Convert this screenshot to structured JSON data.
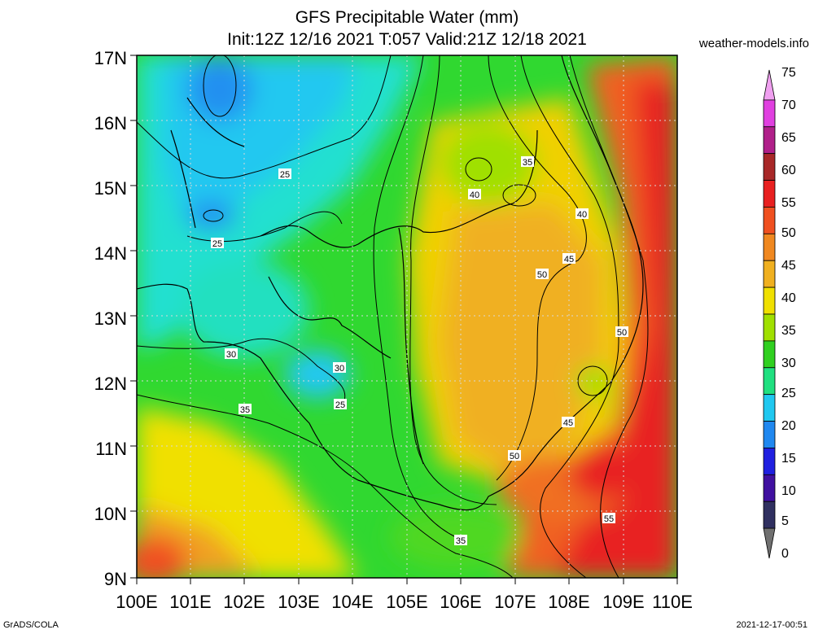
{
  "title": {
    "line1": "GFS Precipitable Water (mm)",
    "line2": "Init:12Z 12/16 2021 T:057 Valid:21Z 12/18 2021"
  },
  "site": "weather-models.info",
  "footer": {
    "left": "GrADS/COLA",
    "right": "2021-12-17-00:51"
  },
  "axes": {
    "lat_labels": [
      "17N",
      "16N",
      "15N",
      "14N",
      "13N",
      "12N",
      "11N",
      "10N",
      "9N"
    ],
    "lon_labels": [
      "100E",
      "101E",
      "102E",
      "103E",
      "104E",
      "105E",
      "106E",
      "107E",
      "108E",
      "109E",
      "110E"
    ]
  },
  "colorbar": {
    "labels": [
      "75",
      "70",
      "65",
      "60",
      "55",
      "50",
      "45",
      "40",
      "35",
      "30",
      "25",
      "20",
      "15",
      "10",
      "5",
      "0"
    ],
    "colors": [
      "#f0a0f0",
      "#e040e0",
      "#b0208a",
      "#a82828",
      "#e82020",
      "#f05020",
      "#f08820",
      "#f0b020",
      "#f0e000",
      "#a0e000",
      "#30d020",
      "#20e080",
      "#20c8f0",
      "#2088f0",
      "#2020e0",
      "#4010a0",
      "#303060",
      "#707070"
    ]
  },
  "contour_labels": [
    "25",
    "25",
    "30",
    "30",
    "25",
    "35",
    "35",
    "40",
    "40",
    "45",
    "50",
    "50",
    "45",
    "50",
    "35",
    "55"
  ]
}
